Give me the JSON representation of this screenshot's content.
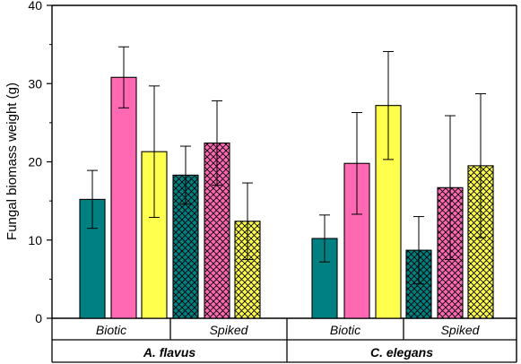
{
  "chart_data": {
    "type": "bar",
    "ylabel": "Fungal biomass weight (g)",
    "ylim": [
      0,
      40
    ],
    "yticks": [
      "0",
      "10",
      "20",
      "30",
      "40"
    ],
    "species": [
      {
        "name": "A. flavus",
        "treatments": [
          {
            "name": "Biotic",
            "pattern": "solid",
            "values": [
              15.2,
              30.8,
              21.3
            ],
            "errors": [
              3.7,
              3.9,
              8.4
            ]
          },
          {
            "name": "Spiked",
            "pattern": "crosshatch",
            "values": [
              18.3,
              22.4,
              12.4
            ],
            "errors": [
              3.7,
              5.4,
              4.9
            ]
          }
        ]
      },
      {
        "name": "C. elegans",
        "treatments": [
          {
            "name": "Biotic",
            "pattern": "solid",
            "values": [
              10.2,
              19.8,
              27.2
            ],
            "errors": [
              3.0,
              6.5,
              6.9
            ]
          },
          {
            "name": "Spiked",
            "pattern": "crosshatch",
            "values": [
              8.7,
              16.7,
              19.5
            ],
            "errors": [
              4.3,
              9.2,
              9.2
            ]
          }
        ]
      }
    ],
    "bar_colors": [
      "#008080",
      "#ff69b4",
      "#ffff4d"
    ],
    "grid": false,
    "legend": "none"
  }
}
